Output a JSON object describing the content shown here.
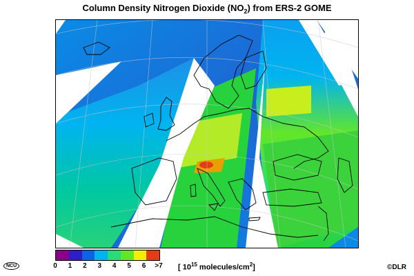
{
  "title": {
    "main": "Column Density Nitrogen Dioxide (NO",
    "sub": "2",
    "tail": ") from ERS-2 GOME"
  },
  "colorbar": {
    "ticks": [
      "0",
      "1",
      "2",
      "3",
      "4",
      "5",
      "6",
      ">7"
    ],
    "colors": [
      "#8b008b",
      "#2f1ec8",
      "#0a64e6",
      "#00b4f0",
      "#28dc78",
      "#64e628",
      "#f0f000",
      "#e63c14"
    ],
    "units_prefix": "[ 10",
    "units_exp": "15",
    "units_mid": " molecules/cm",
    "units_exp2": "2",
    "units_suffix": "]"
  },
  "logos": {
    "left": "NCU",
    "right": "©DLR"
  },
  "map": {
    "colors": {
      "ocean_swath": "#1e90e6",
      "low": "#00b4f0",
      "mid": "#28dc78",
      "green": "#3cd23c",
      "yellow": "#f0f000",
      "orange": "#f0a000",
      "red": "#e63c14",
      "gap": "#ffffff",
      "coast": "#000000",
      "grid": "#c8c8c8"
    }
  }
}
